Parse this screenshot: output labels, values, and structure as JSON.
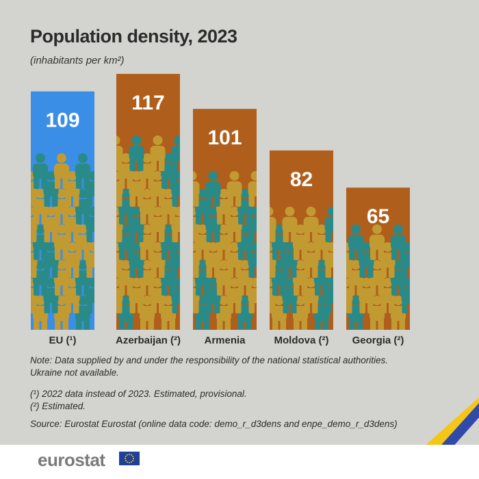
{
  "title": "Population density, 2023",
  "subtitle": "(inhabitants per km²)",
  "colors": {
    "eu": "#3b8ee6",
    "country": "#b05e1b",
    "person_teal": "#2a8a88",
    "person_gold": "#c29a32",
    "background": "#d3d3cf"
  },
  "chart_data": {
    "type": "bar",
    "title": "Population density, 2023",
    "ylabel": "inhabitants per km²",
    "ylim": [
      0,
      117
    ],
    "categories": [
      "EU (¹)",
      "Azerbaijan (²)",
      "Armenia",
      "Moldova (²)",
      "Georgia (²)"
    ],
    "values": [
      109,
      117,
      101,
      82,
      65
    ],
    "bar_colors": [
      "#3b8ee6",
      "#b05e1b",
      "#b05e1b",
      "#b05e1b",
      "#b05e1b"
    ],
    "value_labels": [
      "109",
      "117",
      "101",
      "82",
      "65"
    ]
  },
  "notes": {
    "main": "Note: Data supplied by and under the responsibility of the national statistical authorities. Ukraine not available.",
    "footnote1": "(¹) 2022 data instead of 2023. Estimated, provisional.",
    "footnote2": "(²) Estimated.",
    "source": "Source: Eurostat Eurostat (online data code: demo_r_d3dens and enpe_demo_r_d3dens)"
  },
  "footer": {
    "logo": "eurostat"
  }
}
